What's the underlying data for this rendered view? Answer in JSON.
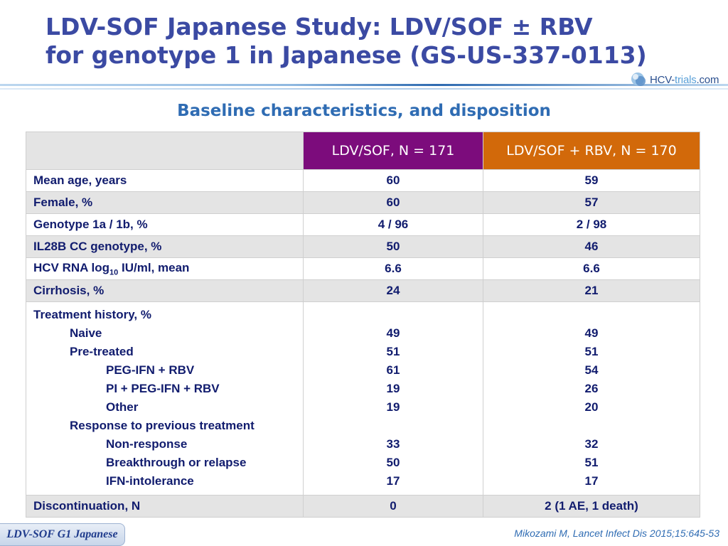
{
  "title": {
    "line1": "LDV-SOF Japanese Study: LDV/SOF ± RBV",
    "line2": "for genotype 1 in Japanese (GS-US-337-0113)"
  },
  "logo": {
    "prefix": "HCV-",
    "trials": "trials",
    "suffix": ".com"
  },
  "subtitle": "Baseline characteristics, and disposition",
  "table": {
    "headers": [
      "LDV/SOF, N = 171",
      "LDV/SOF + RBV, N = 170"
    ],
    "header_colors": [
      "#7c0c7c",
      "#d2690a"
    ],
    "rows": [
      {
        "label": "Mean age, years",
        "v1": "60",
        "v2": "59"
      },
      {
        "label": "Female, %",
        "v1": "60",
        "v2": "57"
      },
      {
        "label": "Genotype 1a / 1b, %",
        "v1": "4 / 96",
        "v2": "2 / 98"
      },
      {
        "label": "IL28B CC genotype, %",
        "v1": "50",
        "v2": "46"
      },
      {
        "label_pre": "HCV RNA log",
        "label_sub": "10",
        "label_post": " IU/ml, mean",
        "v1": "6.6",
        "v2": "6.6"
      },
      {
        "label": "Cirrhosis, %",
        "v1": "24",
        "v2": "21"
      }
    ],
    "treatment_history": {
      "lines": [
        {
          "label": "Treatment history, %",
          "v1": "",
          "v2": ""
        },
        {
          "label": "Naive",
          "v1": "49",
          "v2": "49"
        },
        {
          "label": "Pre-treated",
          "v1": "51",
          "v2": "51"
        },
        {
          "label": "PEG-IFN + RBV",
          "v1": "61",
          "v2": "54"
        },
        {
          "label": "PI + PEG-IFN + RBV",
          "v1": "19",
          "v2": "26"
        },
        {
          "label": "Other",
          "v1": "19",
          "v2": "20"
        },
        {
          "label": "Response to previous treatment",
          "v1": "",
          "v2": ""
        },
        {
          "label": "Non-response",
          "v1": "33",
          "v2": "32"
        },
        {
          "label": "Breakthrough or relapse",
          "v1": "50",
          "v2": "51"
        },
        {
          "label": "IFN-intolerance",
          "v1": "17",
          "v2": "17"
        }
      ]
    },
    "discontinuation": {
      "label": "Discontinuation, N",
      "v1": "0",
      "v2": "2 (1 AE, 1 death)"
    }
  },
  "footer_tag": "LDV-SOF G1 Japanese",
  "citation": "Mikozami M, Lancet Infect Dis 2015;15:645-53"
}
